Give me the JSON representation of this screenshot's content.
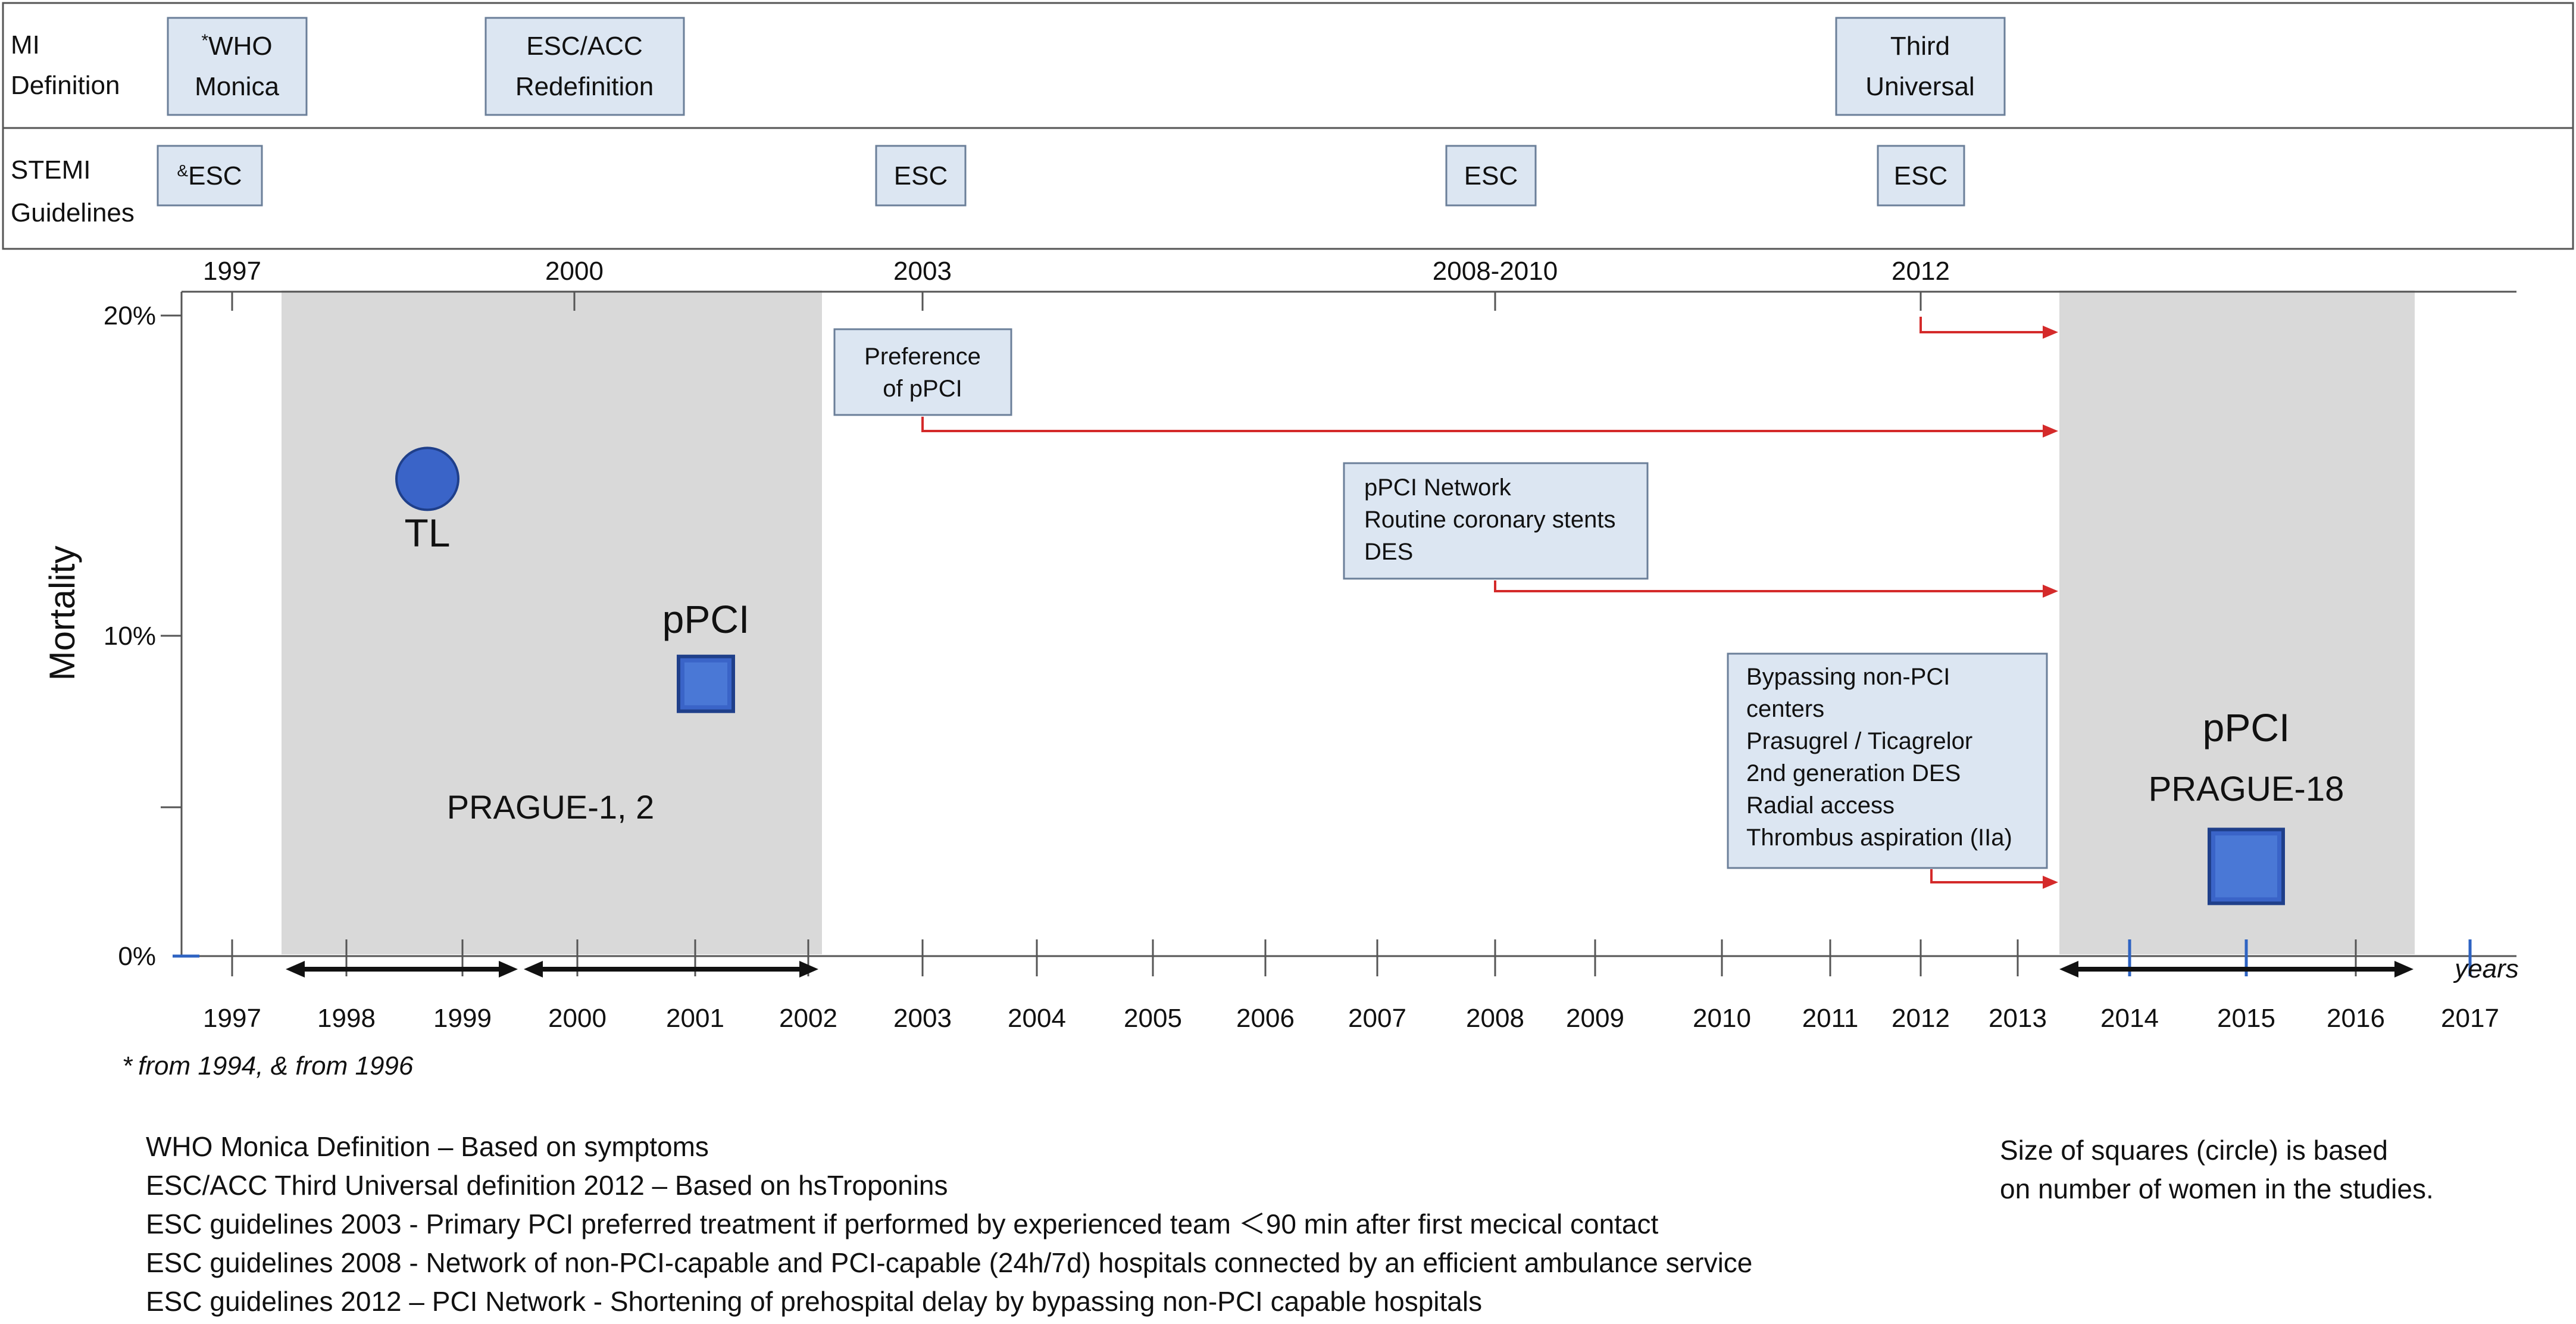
{
  "rows": {
    "mi_definition": "MI\nDefinition",
    "stemi_guidelines": "STEMI\nGuidelines"
  },
  "mi_boxes": [
    {
      "id": "who",
      "sup": "*",
      "line1": "WHO",
      "line2": "Monica"
    },
    {
      "id": "escacc",
      "line1": "ESC/ACC",
      "line2": "Redefinition"
    },
    {
      "id": "third",
      "line1": "Third",
      "line2": "Universal"
    }
  ],
  "stemi_boxes": [
    {
      "id": "esc1997",
      "sup": "&",
      "label": "ESC"
    },
    {
      "id": "esc2003",
      "label": "ESC"
    },
    {
      "id": "esc2008",
      "label": "ESC"
    },
    {
      "id": "esc2012",
      "label": "ESC"
    }
  ],
  "top_years": [
    "1997",
    "2000",
    "2003",
    "2008-2010",
    "2012"
  ],
  "chart_data": {
    "type": "scatter",
    "ylabel": "Mortality",
    "xlabel": "years",
    "y_ticks": [
      "0%",
      "10%",
      "20%"
    ],
    "ylim": [
      0,
      0.2
    ],
    "x_ticks": [
      "1997",
      "1998",
      "1999",
      "2000",
      "2001",
      "2002",
      "2003",
      "2004",
      "2005",
      "2006",
      "2007",
      "2008",
      "2009",
      "2010",
      "2011",
      "2012",
      "2013",
      "2014",
      "2015",
      "2016",
      "2017"
    ],
    "points": [
      {
        "label": "TL",
        "shape": "circle",
        "year": 1998.7,
        "mortality": 0.149
      },
      {
        "label": "pPCI",
        "shape": "square",
        "year": 2001.1,
        "mortality": 0.085
      },
      {
        "label": "pPCI",
        "shape": "square",
        "year": 2015.1,
        "mortality": 0.028
      }
    ],
    "studies": [
      {
        "label": "PRAGUE-1, 2",
        "start": 1997.45,
        "end": 2002.1
      },
      {
        "label": "PRAGUE-18",
        "start": 2013.35,
        "end": 2016.55
      }
    ],
    "annotations": [
      {
        "id": "pref",
        "lines": [
          "Preference",
          "of pPCI"
        ],
        "from_year": 2003
      },
      {
        "id": "network",
        "lines": [
          "pPCI Network",
          "Routine coronary stents",
          "DES"
        ],
        "from_year": 2008
      },
      {
        "id": "bypass",
        "lines": [
          "Bypassing non-PCI",
          "centers",
          "Prasugrel / Ticagrelor",
          "2nd generation DES",
          "Radial access",
          "Thrombus aspiration (IIa)"
        ],
        "from_year": 2012
      }
    ]
  },
  "footnote": "from 1994, & from 1996",
  "footnote_star": "*",
  "size_note": [
    "Size of squares (circle) is based",
    "on number of women in the studies."
  ],
  "definitions": [
    "WHO Monica Definition – Based on symptoms",
    "ESC/ACC Third Universal definition 2012 – Based on hsTroponins",
    "ESC guidelines 2003 - Primary PCI preferred treatment if performed by experienced team ＜90 min after first mecical contact",
    "ESC guidelines 2008 - Network of non-PCI-capable and PCI-capable (24h/7d) hospitals connected by an efficient ambulance service",
    "ESC guidelines 2012 – PCI Network - Shortening of prehospital delay by bypassing non-PCI capable hospitals"
  ],
  "colors": {
    "accent_blue": "#3a64c8",
    "red_arrow": "#d42a2a",
    "box_fill": "#dce6f2",
    "shade": "#d9d9d9"
  }
}
